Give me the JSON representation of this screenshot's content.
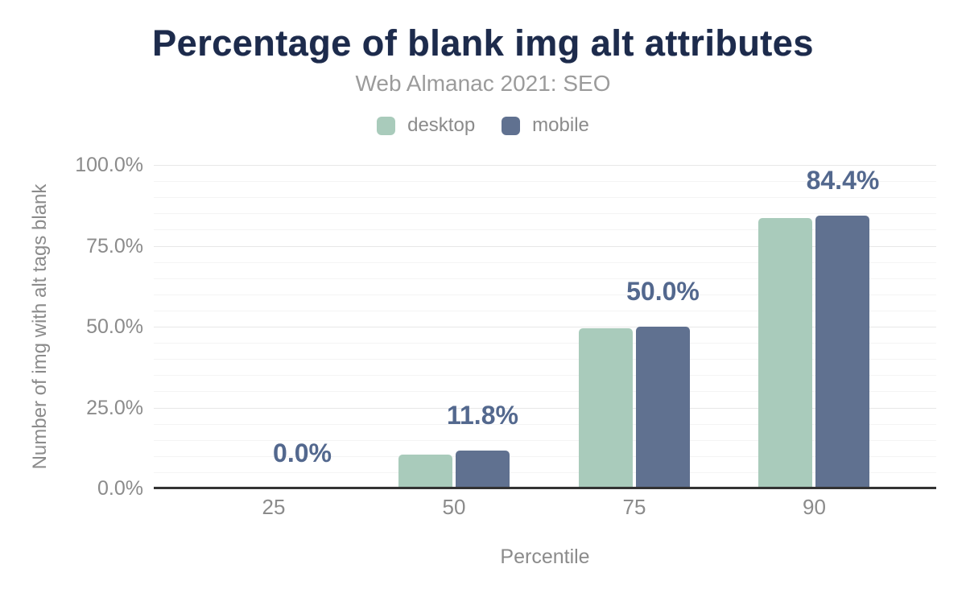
{
  "chart_data": {
    "type": "bar",
    "title": "Percentage of blank img alt attributes",
    "subtitle": "Web Almanac 2021: SEO",
    "xlabel": "Percentile",
    "ylabel": "Number of img with alt tags blank",
    "categories": [
      "25",
      "50",
      "75",
      "90"
    ],
    "series": [
      {
        "name": "desktop",
        "color": "#a9cbbb",
        "values": [
          0.0,
          10.5,
          49.4,
          83.5
        ]
      },
      {
        "name": "mobile",
        "color": "#607190",
        "values": [
          0.0,
          11.8,
          50.0,
          84.4
        ]
      }
    ],
    "data_labels": {
      "labeled_series": "mobile",
      "values": [
        "0.0%",
        "11.8%",
        "50.0%",
        "84.4%"
      ]
    },
    "yticks": [
      {
        "value": 0,
        "label": "0.0%"
      },
      {
        "value": 25,
        "label": "25.0%"
      },
      {
        "value": 50,
        "label": "50.0%"
      },
      {
        "value": 75,
        "label": "75.0%"
      },
      {
        "value": 100,
        "label": "100.0%"
      }
    ],
    "ylim": [
      0,
      100
    ],
    "grid": {
      "orientation": "horizontal",
      "minor_step_pct": 5,
      "major_step_pct": 25
    },
    "legend_position": "top",
    "colors": {
      "title": "#1d2b4c",
      "subtitle": "#9b9b9b",
      "tick_label": "#8b8b8b",
      "axis_title": "#8b8b8b",
      "data_label": "#53688e",
      "axis_line": "#333333",
      "grid_major": "#e7e7e7",
      "grid_minor": "#f4f4f4",
      "background": "#ffffff"
    }
  }
}
